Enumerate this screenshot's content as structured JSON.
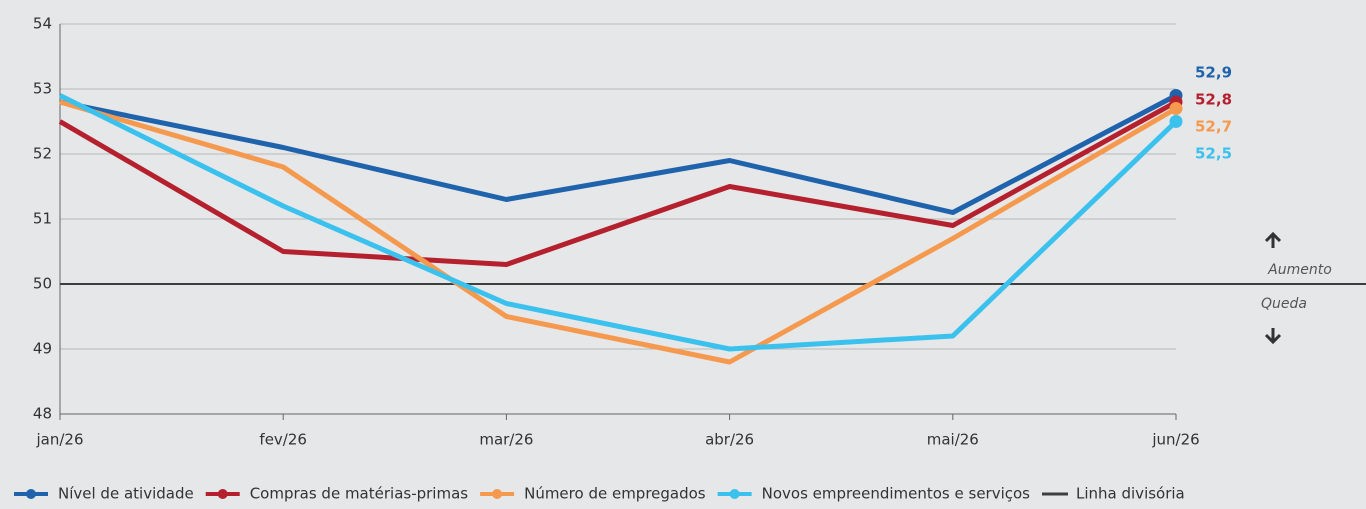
{
  "chart_data": {
    "type": "line",
    "categories": [
      "jan/26",
      "fev/26",
      "mar/26",
      "abr/26",
      "mai/26",
      "jun/26"
    ],
    "series": [
      {
        "name": "Nível de atividade",
        "color": "#1f63ad",
        "values": [
          52.8,
          52.1,
          51.3,
          51.9,
          51.1,
          52.9
        ],
        "value_labels": [
          null,
          null,
          null,
          null,
          null,
          "52,9"
        ]
      },
      {
        "name": "Compras de matérias-primas",
        "color": "#b5202e",
        "values": [
          52.5,
          50.5,
          50.3,
          51.5,
          50.9,
          52.8
        ],
        "value_labels": [
          null,
          null,
          null,
          null,
          null,
          "52,8"
        ]
      },
      {
        "name": "Número de empregados",
        "color": "#f5994e",
        "values": [
          52.8,
          51.8,
          49.5,
          48.8,
          50.7,
          52.7
        ],
        "value_labels": [
          null,
          null,
          null,
          null,
          null,
          "52,7"
        ]
      },
      {
        "name": "Novos empreendimentos e serviços",
        "color": "#3bc1ee",
        "values": [
          52.9,
          51.2,
          49.7,
          49.0,
          49.2,
          52.5
        ],
        "value_labels": [
          null,
          null,
          null,
          null,
          null,
          "52,5"
        ]
      }
    ],
    "divider": {
      "name": "Linha divisória",
      "value": 50,
      "color": "#3f3f3f"
    },
    "annotations": [
      "Aumento",
      "Queda"
    ],
    "ylim": [
      48,
      54
    ],
    "yticks": [
      48,
      49,
      50,
      51,
      52,
      53,
      54
    ],
    "grid": true
  }
}
